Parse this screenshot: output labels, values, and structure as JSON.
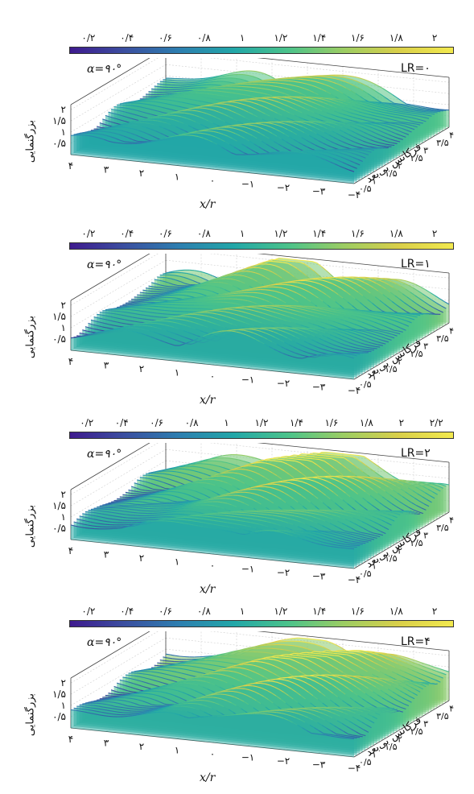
{
  "chart_data": [
    {
      "type": "surface",
      "panel_label": "LR=۰",
      "alpha_label": "α=۹۰°",
      "zlabel": "بزرگنمایی",
      "xlabel": "x/r",
      "ylabel": "فرکانس بی‌بعد",
      "colorbar_ticks": [
        "۰/۲",
        "۰/۴",
        "۰/۶",
        "۰/۸",
        "۱",
        "۱/۲",
        "۱/۴",
        "۱/۶",
        "۱/۸",
        "۲"
      ],
      "colorbar_range": [
        0.1,
        2.1
      ],
      "x_ticks": [
        "۴",
        "۳",
        "۲",
        "۱",
        "۰",
        "−۱",
        "−۲",
        "−۳",
        "−۴"
      ],
      "y_ticks": [
        "۰/۵",
        "۱",
        "۱/۵",
        "۲",
        "۲/۵",
        "۳",
        "۳/۵",
        "۴"
      ],
      "z_ticks": [
        "۰/۵",
        "۱",
        "۱/۵",
        "۲"
      ],
      "x_range": [
        -4,
        4
      ],
      "y_range": [
        0.25,
        4
      ],
      "z_range": [
        0,
        2
      ]
    },
    {
      "type": "surface",
      "panel_label": "LR=۱",
      "alpha_label": "α=۹۰°",
      "zlabel": "بزرگنمایی",
      "xlabel": "x/r",
      "ylabel": "فرکانس بی‌بعد",
      "colorbar_ticks": [
        "۰/۲",
        "۰/۴",
        "۰/۶",
        "۰/۸",
        "۱",
        "۱/۲",
        "۱/۴",
        "۱/۶",
        "۱/۸",
        "۲"
      ],
      "colorbar_range": [
        0.1,
        2.1
      ],
      "x_ticks": [
        "۴",
        "۳",
        "۲",
        "۱",
        "۰",
        "−۱",
        "−۲",
        "−۳",
        "−۴"
      ],
      "y_ticks": [
        "۰/۵",
        "۱",
        "۱/۵",
        "۲",
        "۲/۵",
        "۳",
        "۳/۵",
        "۴"
      ],
      "z_ticks": [
        "۰/۵",
        "۱",
        "۱/۵",
        "۲"
      ],
      "x_range": [
        -4,
        4
      ],
      "y_range": [
        0.25,
        4
      ],
      "z_range": [
        0,
        2
      ]
    },
    {
      "type": "surface",
      "panel_label": "LR=۲",
      "alpha_label": "α=۹۰°",
      "zlabel": "بزرگنمایی",
      "xlabel": "x/r",
      "ylabel": "فرکانس بی‌بعد",
      "colorbar_ticks": [
        "۰/۲",
        "۰/۴",
        "۰/۶",
        "۰/۸",
        "۱",
        "۱/۲",
        "۱/۴",
        "۱/۶",
        "۱/۸",
        "۲",
        "۲/۲"
      ],
      "colorbar_range": [
        0.1,
        2.3
      ],
      "x_ticks": [
        "۴",
        "۳",
        "۲",
        "۱",
        "۰",
        "−۱",
        "−۲",
        "−۳",
        "−۴"
      ],
      "y_ticks": [
        "۰/۵",
        "۱",
        "۱/۵",
        "۲",
        "۲/۵",
        "۳",
        "۳/۵",
        "۴"
      ],
      "z_ticks": [
        "۰/۵",
        "۱",
        "۱/۵",
        "۲"
      ],
      "x_range": [
        -4,
        4
      ],
      "y_range": [
        0.25,
        4
      ],
      "z_range": [
        0,
        2
      ]
    },
    {
      "type": "surface",
      "panel_label": "LR=۴",
      "alpha_label": "α=۹۰°",
      "zlabel": "بزرگنمایی",
      "xlabel": "x/r",
      "ylabel": "فرکانس بی‌بعد",
      "colorbar_ticks": [
        "۰/۲",
        "۰/۴",
        "۰/۶",
        "۰/۸",
        "۱",
        "۱/۲",
        "۱/۴",
        "۱/۶",
        "۱/۸",
        "۲"
      ],
      "colorbar_range": [
        0.1,
        2.1
      ],
      "x_ticks": [
        "۴",
        "۳",
        "۲",
        "۱",
        "۰",
        "−۱",
        "−۲",
        "−۳",
        "−۴"
      ],
      "y_ticks": [
        "۰/۵",
        "۱",
        "۱/۵",
        "۲",
        "۲/۵",
        "۳",
        "۳/۵",
        "۴"
      ],
      "z_ticks": [
        "۰/۵",
        "۱",
        "۱/۵",
        "۲"
      ],
      "x_range": [
        -4,
        4
      ],
      "y_range": [
        0.25,
        4
      ],
      "z_range": [
        0,
        2
      ]
    }
  ],
  "colormap": [
    "#3e1a8e",
    "#3b4fa0",
    "#2d7fb0",
    "#22a7a8",
    "#4cc38a",
    "#9ccd63",
    "#d9cf4a",
    "#f2e94e"
  ]
}
